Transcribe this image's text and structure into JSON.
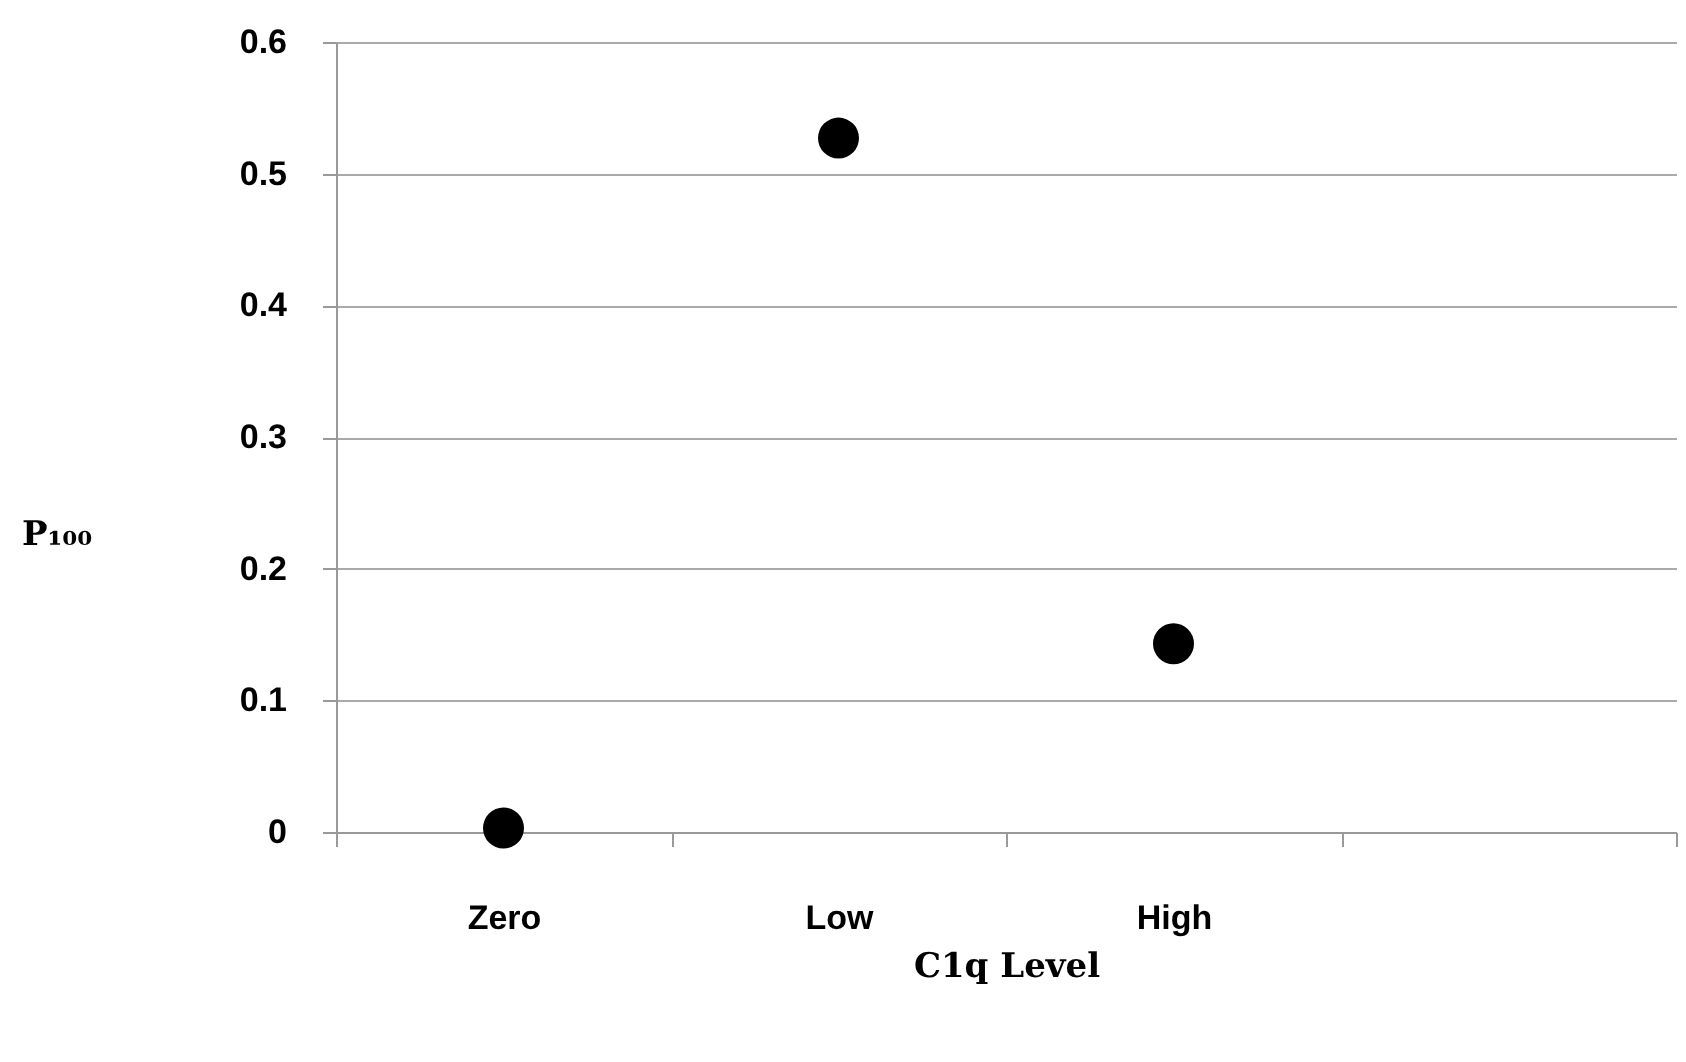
{
  "chart_data": {
    "type": "scatter",
    "categories": [
      "Zero",
      "Low",
      "High",
      null
    ],
    "values": [
      0.003,
      0.527,
      0.143,
      null
    ],
    "color": "#000000",
    "xlabel": "C1q Level",
    "ylabel": "P₁₀₀",
    "ylim": [
      0,
      0.6
    ],
    "yticks": [
      0,
      0.1,
      0.2,
      0.3,
      0.4,
      0.5,
      0.6
    ],
    "grid": "y",
    "marker": "circle"
  }
}
